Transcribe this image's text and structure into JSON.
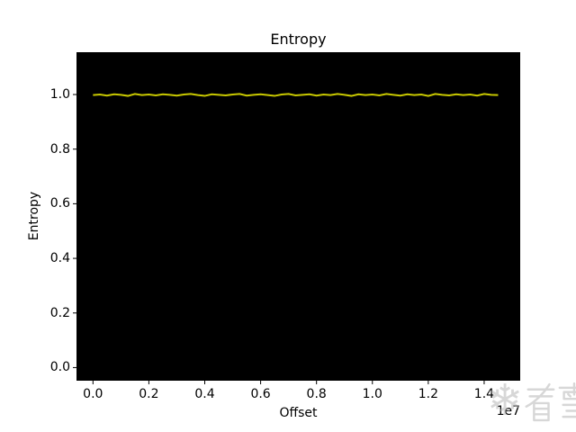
{
  "chart_data": {
    "type": "line",
    "title": "Entropy",
    "xlabel": "Offset",
    "ylabel": "Entropy",
    "x_scale_offset_label": "1e7",
    "xlim": [
      -590000,
      15290000
    ],
    "ylim": [
      -0.048,
      1.155
    ],
    "x_ticks": {
      "values": [
        0,
        2000000,
        4000000,
        6000000,
        8000000,
        10000000,
        12000000,
        14000000
      ],
      "labels": [
        "0.0",
        "0.2",
        "0.4",
        "0.6",
        "0.8",
        "1.0",
        "1.2",
        "1.4"
      ]
    },
    "y_ticks": {
      "values": [
        0.0,
        0.2,
        0.4,
        0.6,
        0.8,
        1.0
      ],
      "labels": [
        "0.0",
        "0.2",
        "0.4",
        "0.6",
        "0.8",
        "1.0"
      ]
    },
    "grid": false,
    "legend": false,
    "plot_background": "#000000",
    "figure_background": "#ffffff",
    "tick_color": "#000000",
    "series": [
      {
        "name": "entropy",
        "color": "#c8c800",
        "line_width": 2,
        "x": [
          0,
          250000,
          500000,
          750000,
          1000000,
          1250000,
          1500000,
          1750000,
          2000000,
          2250000,
          2500000,
          2750000,
          3000000,
          3250000,
          3500000,
          3750000,
          4000000,
          4250000,
          4500000,
          4750000,
          5000000,
          5250000,
          5500000,
          5750000,
          6000000,
          6250000,
          6500000,
          6750000,
          7000000,
          7250000,
          7500000,
          7750000,
          8000000,
          8250000,
          8500000,
          8750000,
          9000000,
          9250000,
          9500000,
          9750000,
          10000000,
          10250000,
          10500000,
          10750000,
          11000000,
          11250000,
          11500000,
          11750000,
          12000000,
          12250000,
          12500000,
          12750000,
          13000000,
          13250000,
          13500000,
          13750000,
          14000000,
          14250000,
          14500000
        ],
        "y": [
          0.998,
          1.0,
          0.996,
          1.001,
          0.999,
          0.995,
          1.002,
          0.998,
          1.0,
          0.997,
          1.001,
          0.999,
          0.996,
          1.0,
          1.002,
          0.998,
          0.995,
          1.001,
          0.999,
          0.997,
          1.0,
          1.002,
          0.996,
          0.999,
          1.001,
          0.998,
          0.995,
          1.0,
          1.002,
          0.997,
          0.999,
          1.001,
          0.996,
          1.0,
          0.998,
          1.002,
          0.999,
          0.995,
          1.001,
          0.998,
          1.0,
          0.997,
          1.002,
          0.999,
          0.996,
          1.001,
          0.998,
          1.0,
          0.995,
          1.002,
          0.999,
          0.997,
          1.001,
          0.998,
          1.0,
          0.996,
          1.002,
          0.999,
          0.998
        ]
      }
    ]
  },
  "watermark": {
    "icon": "snowflake-icon",
    "text": "看雪",
    "color_rgba": "rgba(175,175,175,0.5)"
  }
}
